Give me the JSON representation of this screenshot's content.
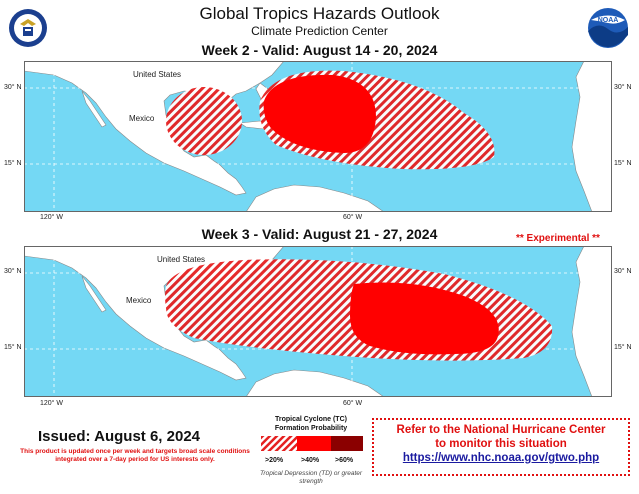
{
  "header": {
    "title": "Global Tropics Hazards Outlook",
    "subtitle": "Climate Prediction Center"
  },
  "logos": {
    "left_seal": "commerce-seal-icon",
    "right_logo_text": "NOAA"
  },
  "colors": {
    "ocean": "#74d8f4",
    "land": "#ffffff",
    "high_prob": "#ff0000",
    "hatch": "#e52020",
    "very_high_prob": "#8b0000",
    "alert_red": "#e01010",
    "link_blue": "#1a1aa0"
  },
  "week2": {
    "title": "Week 2 - Valid: August 14 - 20, 2024",
    "labels": {
      "us": "United States",
      "mexico": "Mexico"
    },
    "lat_labels": [
      "30° N",
      "15° N"
    ],
    "lon_labels": [
      "120° W",
      "60° W"
    ]
  },
  "week3": {
    "title": "Week 3 - Valid: August 21 - 27, 2024",
    "experimental": "** Experimental **",
    "labels": {
      "us": "United States",
      "mexico": "Mexico"
    },
    "lat_labels": [
      "30° N",
      "15° N"
    ],
    "lon_labels": [
      "120° W",
      "60° W"
    ]
  },
  "footer": {
    "issued": "Issued: August 6, 2024",
    "note": "This product is updated once per week and targets broad scale conditions integrated over a 7-day period for US interests only."
  },
  "legend": {
    "title": "Tropical Cyclone (TC) Formation Probability",
    "items": [
      ">20%",
      ">40%",
      ">60%"
    ],
    "subtitle": "Tropical Depression (TD) or greater strength"
  },
  "nhc_box": {
    "line1": "Refer to the National Hurricane Center",
    "line2": "to monitor this situation",
    "link": "https://www.nhc.noaa.gov/gtwo.php"
  }
}
